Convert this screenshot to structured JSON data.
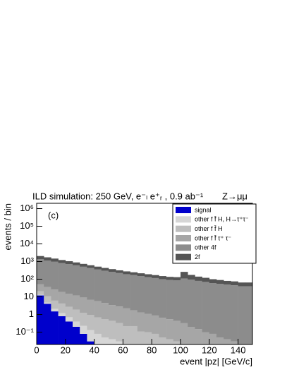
{
  "chart_data": {
    "type": "stacked-histogram",
    "title": "ILD simulation: 250 GeV, e⁻ₗ e⁺ᵣ , 0.9 ab⁻¹",
    "subtitle": "Z→μμ",
    "annotation": "(c)",
    "x_label": "event |pz| [GeV/c]",
    "y_label": "events / bin",
    "log_y": true,
    "legend": "upper right",
    "bins": [
      0,
      5,
      10,
      15,
      20,
      25,
      30,
      35,
      40,
      45,
      50,
      55,
      60,
      65,
      70,
      75,
      80,
      85,
      90,
      95,
      100,
      105,
      110,
      115,
      120,
      125,
      130,
      135,
      140,
      145,
      150
    ],
    "series": [
      {
        "name": "signal",
        "color": "#0000cc",
        "values": [
          12,
          4,
          1.5,
          0.8,
          0.4,
          0.2,
          0.08,
          0.03,
          0,
          0,
          0,
          0,
          0,
          0,
          0,
          0,
          0,
          0,
          0,
          0,
          0,
          0,
          0,
          0,
          0,
          0,
          0,
          0,
          0,
          0
        ]
      },
      {
        "name": "other f f̄ H, H→τ⁺τ⁻",
        "color": "#d6d6d6",
        "values": [
          1,
          0.8,
          0.6,
          0.4,
          0.3,
          0.2,
          0.15,
          0.1,
          0.08,
          0.05,
          0.04,
          0.03,
          0.02,
          0.02,
          0.01,
          0,
          0,
          0,
          0,
          0,
          0,
          0,
          0,
          0,
          0,
          0,
          0,
          0,
          0,
          0
        ]
      },
      {
        "name": "other f f̄ H",
        "color": "#bebebe",
        "values": [
          8,
          6,
          4,
          3,
          2,
          1.5,
          1,
          0.8,
          0.6,
          0.5,
          0.4,
          0.3,
          0.2,
          0.2,
          0.1,
          0.1,
          0.08,
          0.05,
          0.04,
          0.03,
          0.02,
          0,
          0,
          0,
          0,
          0,
          0,
          0,
          0,
          0
        ]
      },
      {
        "name": "other f f̄ τ⁺ τ⁻",
        "color": "#a6a6a6",
        "values": [
          30,
          25,
          20,
          15,
          12,
          10,
          8,
          6,
          5,
          4,
          3,
          2.5,
          2,
          1.5,
          1.2,
          1,
          0.8,
          0.6,
          0.5,
          0.4,
          0.3,
          0.2,
          0.15,
          0.1,
          0.08,
          0.05,
          0.04,
          0.03,
          0.02,
          0.02
        ]
      },
      {
        "name": "other 4f",
        "color": "#8c8c8c",
        "values": [
          1300,
          1100,
          950,
          800,
          700,
          600,
          500,
          420,
          350,
          300,
          260,
          220,
          190,
          170,
          150,
          130,
          115,
          100,
          90,
          85,
          110,
          95,
          80,
          70,
          60,
          55,
          50,
          45,
          40,
          40
        ]
      },
      {
        "name": "2f",
        "color": "#555555",
        "values": [
          700,
          600,
          500,
          400,
          330,
          280,
          230,
          190,
          160,
          130,
          110,
          95,
          85,
          75,
          65,
          60,
          55,
          50,
          45,
          45,
          150,
          80,
          60,
          50,
          40,
          35,
          30,
          30,
          25,
          25
        ]
      }
    ],
    "xlim": [
      0,
      150
    ],
    "xticks": [
      0,
      20,
      40,
      60,
      80,
      100,
      120,
      140
    ],
    "ylim": [
      0.02,
      2000000
    ],
    "yticks": [
      {
        "value": 0.1,
        "label": "10⁻¹"
      },
      1,
      10,
      {
        "value": 100,
        "label": "10²"
      },
      {
        "value": 1000,
        "label": "10³"
      },
      {
        "value": 10000,
        "label": "10⁴"
      },
      {
        "value": 100000,
        "label": "10⁵"
      },
      {
        "value": 1000000,
        "label": "10⁶"
      }
    ]
  }
}
